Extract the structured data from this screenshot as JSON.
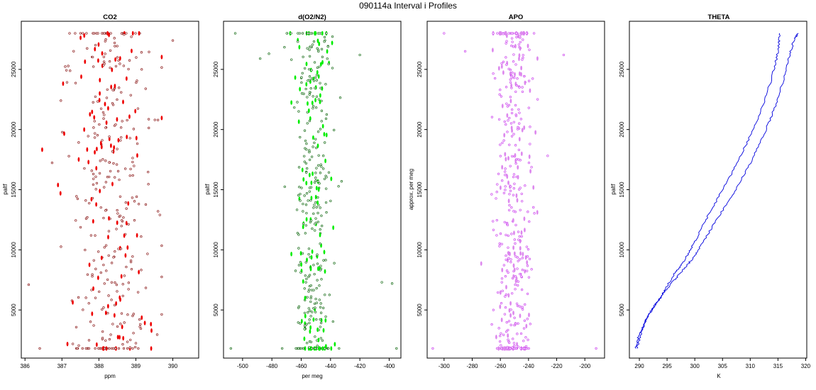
{
  "figure_title": "090114a   Interval i Profiles",
  "chart_data": [
    {
      "type": "scatter",
      "title": "CO2",
      "xlabel": "ppm",
      "ylabel": "paltf",
      "xlim": [
        385.9,
        390.7
      ],
      "ylim": [
        1000,
        29000
      ],
      "x_ticks": [
        "386",
        "387",
        "388",
        "389",
        "390"
      ],
      "x_tick_values": [
        386,
        387,
        388,
        389,
        390
      ],
      "y_ticks": [
        "5000",
        "10000",
        "15000",
        "20000",
        "25000"
      ],
      "y_tick_values": [
        5000,
        10000,
        15000,
        20000,
        25000
      ],
      "y_range_of_points": [
        1800,
        28000
      ],
      "x_center": 388.3,
      "x_spread": 0.55,
      "x_bounds": [
        386.3,
        389.7
      ],
      "outliers": [
        [
          386.1,
          7100
        ],
        [
          389.6,
          13200
        ],
        [
          389.65,
          12900
        ],
        [
          390.0,
          27400
        ],
        [
          386.4,
          1800
        ]
      ],
      "point_color": "#8b1a1a",
      "point_fill": "#ffffff",
      "bar_color": "#ee0000",
      "grid": false,
      "legend": "none"
    },
    {
      "type": "scatter",
      "title": "d(O2/N2)",
      "xlabel": "per meg",
      "ylabel": "paltf",
      "xlim": [
        -513,
        -392
      ],
      "ylim": [
        1000,
        29000
      ],
      "x_ticks": [
        "-500",
        "-480",
        "-460",
        "-440",
        "-420",
        "-400"
      ],
      "x_tick_values": [
        -500,
        -480,
        -460,
        -440,
        -420,
        -400
      ],
      "y_ticks": [
        "5000",
        "10000",
        "15000",
        "20000",
        "25000"
      ],
      "y_tick_values": [
        5000,
        10000,
        15000,
        20000,
        25000
      ],
      "y_range_of_points": [
        1800,
        28000
      ],
      "x_center": -452,
      "x_spread": 7,
      "x_bounds": [
        -510,
        -395
      ],
      "outliers": [
        [
          -508,
          1800
        ],
        [
          -395,
          1800
        ],
        [
          -398,
          7200
        ],
        [
          -405,
          7300
        ],
        [
          -482,
          26300
        ],
        [
          -488,
          25900
        ],
        [
          -420,
          26200
        ],
        [
          -505,
          28000
        ]
      ],
      "point_color": "#1a6e1a",
      "point_fill": "#ffffff",
      "bar_color": "#00ee00",
      "grid": false,
      "legend": "none"
    },
    {
      "type": "scatter",
      "title": "APO",
      "xlabel": "",
      "ylabel": "approx. per meg",
      "xlim": [
        -312,
        -186
      ],
      "ylim": [
        1000,
        29000
      ],
      "x_ticks": [
        "-300",
        "-280",
        "-260",
        "-240",
        "-220",
        "-200"
      ],
      "x_tick_values": [
        -300,
        -280,
        -260,
        -240,
        -220,
        -200
      ],
      "y_ticks": [
        "5000",
        "10000",
        "15000",
        "20000",
        "25000"
      ],
      "y_tick_values": [
        5000,
        10000,
        15000,
        20000,
        25000
      ],
      "y_range_of_points": [
        1800,
        28000
      ],
      "x_center": -251,
      "x_spread": 7,
      "x_bounds": [
        -310,
        -190
      ],
      "outliers": [
        [
          -308,
          1800
        ],
        [
          -192,
          1800
        ],
        [
          -300,
          28000
        ],
        [
          -215,
          26200
        ],
        [
          -285,
          26500
        ]
      ],
      "point_color": "#cc44ee",
      "point_fill": "#ffffff",
      "bar_color": "#dd88ee",
      "grid": false,
      "legend": "none"
    },
    {
      "type": "line",
      "title": "THETA",
      "xlabel": "K",
      "ylabel": "paltf",
      "xlim": [
        288.2,
        320.2
      ],
      "ylim": [
        1000,
        29000
      ],
      "x_ticks": [
        "290",
        "295",
        "300",
        "305",
        "310",
        "315",
        "320"
      ],
      "x_tick_values": [
        290,
        295,
        300,
        305,
        310,
        315,
        320
      ],
      "y_ticks": [
        "5000",
        "10000",
        "15000",
        "20000",
        "25000"
      ],
      "y_tick_values": [
        5000,
        10000,
        15000,
        20000,
        25000
      ],
      "line_color": "#0000dd",
      "grid": false,
      "legend": "none",
      "series": [
        {
          "x": [
            289.5,
            290.0,
            290.4,
            291.0,
            291.9,
            292.8,
            293.8,
            295.0,
            296.3,
            297.4,
            298.2,
            299.2,
            300.4,
            302.0,
            303.8,
            305.6,
            307.4,
            309.3,
            311.0,
            312.7,
            314.0,
            314.8,
            315.2,
            315.3
          ],
          "y": [
            1800,
            2500,
            3200,
            4000,
            4800,
            5400,
            6000,
            7000,
            8000,
            8600,
            9200,
            10000,
            11000,
            12500,
            14000,
            15500,
            17000,
            18800,
            20500,
            22500,
            24500,
            26000,
            27200,
            28000
          ]
        },
        {
          "x": [
            289.3,
            289.8,
            290.6,
            291.6,
            292.8,
            294.0,
            295.4,
            296.9,
            298.2,
            299.3,
            300.5,
            302.0,
            303.8,
            305.9,
            308.0,
            310.0,
            311.8,
            313.4,
            314.8,
            315.9,
            316.7,
            317.3,
            317.9,
            318.7
          ],
          "y": [
            1800,
            2700,
            3600,
            4500,
            5400,
            6200,
            7000,
            7800,
            8500,
            9100,
            9900,
            11000,
            12400,
            13900,
            15500,
            17200,
            18900,
            20600,
            22300,
            24000,
            25500,
            26500,
            27500,
            28000
          ]
        }
      ]
    }
  ]
}
